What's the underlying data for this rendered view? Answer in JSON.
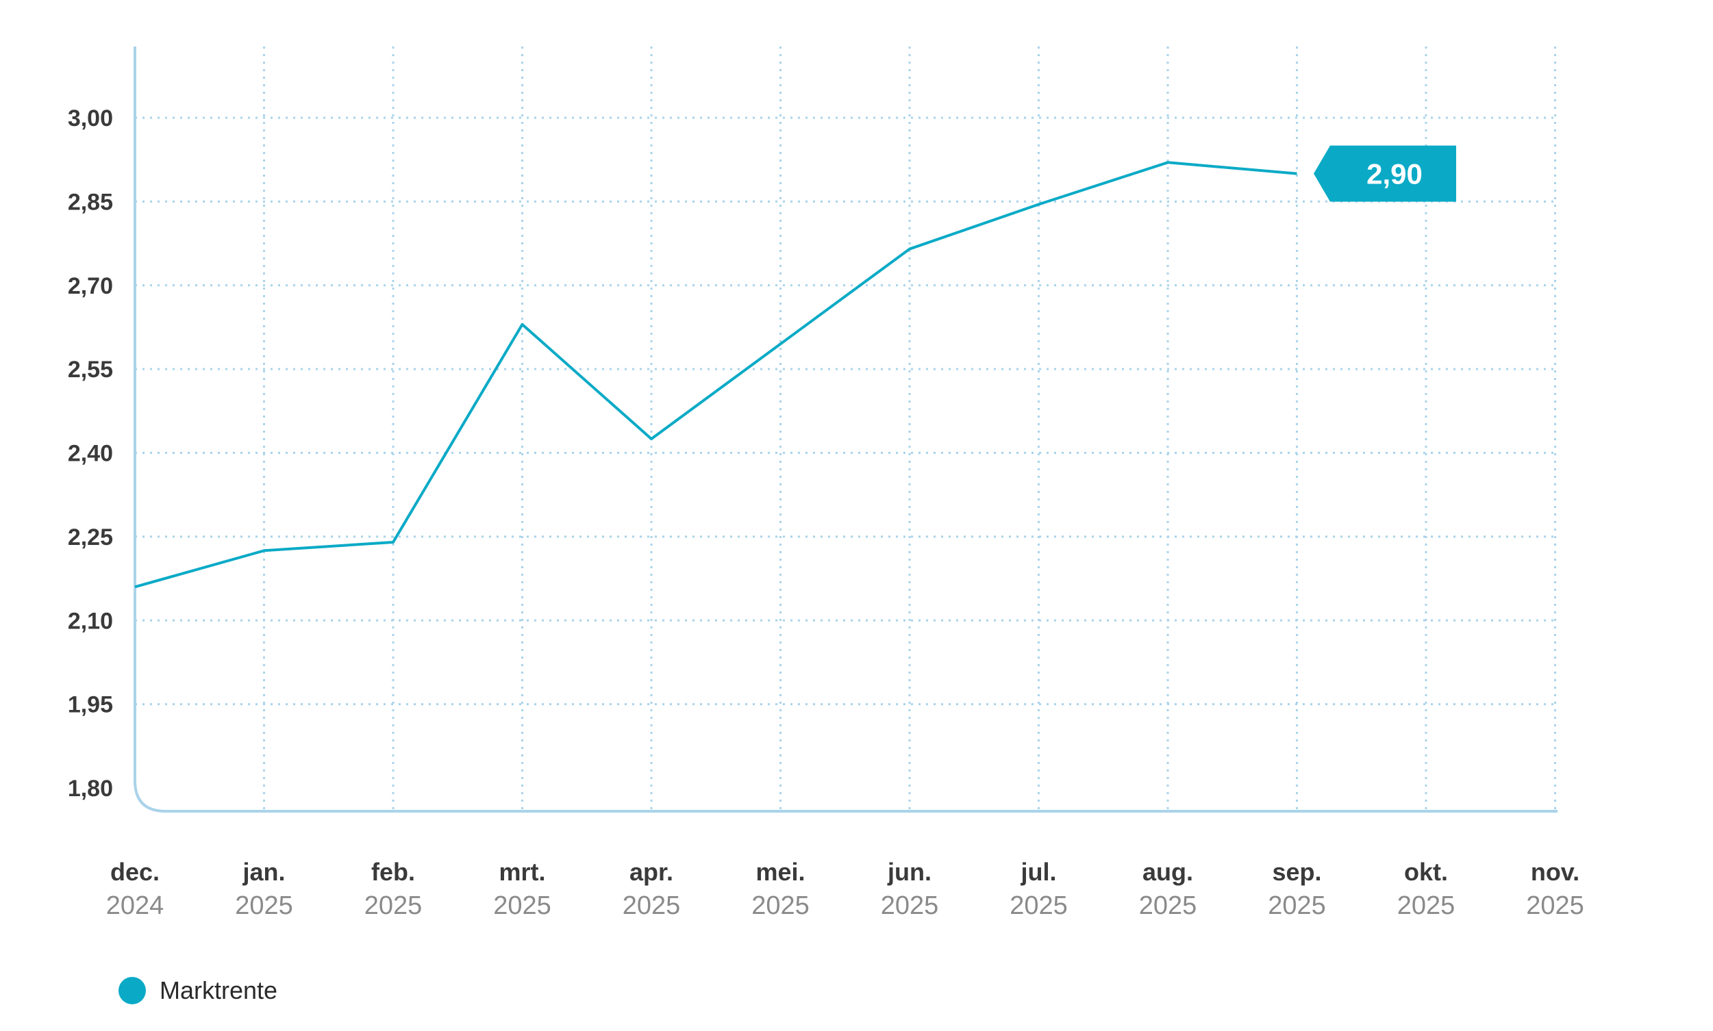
{
  "colors": {
    "series": "#0aaac6",
    "grid": "#a9d3ea",
    "axis": "#a9d3ea",
    "callout": "#0aaac6"
  },
  "chart_data": {
    "type": "line",
    "categories": [
      {
        "month": "dec.",
        "year": "2024"
      },
      {
        "month": "jan.",
        "year": "2025"
      },
      {
        "month": "feb.",
        "year": "2025"
      },
      {
        "month": "mrt.",
        "year": "2025"
      },
      {
        "month": "apr.",
        "year": "2025"
      },
      {
        "month": "mei.",
        "year": "2025"
      },
      {
        "month": "jun.",
        "year": "2025"
      },
      {
        "month": "jul.",
        "year": "2025"
      },
      {
        "month": "aug.",
        "year": "2025"
      },
      {
        "month": "sep.",
        "year": "2025"
      },
      {
        "month": "okt.",
        "year": "2025"
      },
      {
        "month": "nov.",
        "year": "2025"
      }
    ],
    "series": [
      {
        "name": "Marktrente",
        "values": [
          2.16,
          2.225,
          2.24,
          2.63,
          2.425,
          2.595,
          2.765,
          2.845,
          2.92,
          2.9,
          null,
          null
        ]
      }
    ],
    "y_ticks": [
      "1,80",
      "1,95",
      "2,10",
      "2,25",
      "2,40",
      "2,55",
      "2,70",
      "2,85",
      "3,00"
    ],
    "y_tick_values": [
      1.8,
      1.95,
      2.1,
      2.25,
      2.4,
      2.55,
      2.7,
      2.85,
      3.0
    ],
    "ylim": [
      1.755,
      3.13
    ],
    "grid": true,
    "legend_position": "bottom-left",
    "callout": {
      "label": "2,90",
      "category_index": 9
    }
  }
}
